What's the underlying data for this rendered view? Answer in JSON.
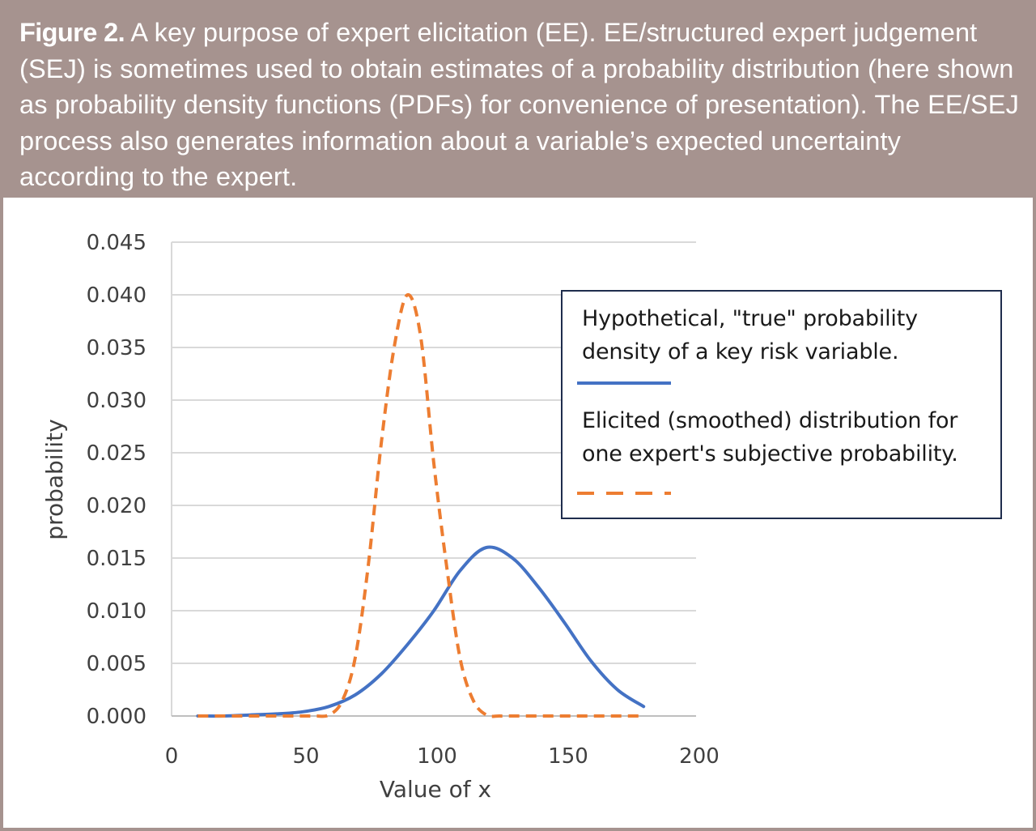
{
  "caption": {
    "label": "Figure 2.",
    "text": " A key purpose of expert elicitation (EE). EE/structured expert judgement (SEJ) is sometimes used to obtain estimates of a probability distribution (here shown as probability density functions (PDFs) for convenience of presentation). The EE/SEJ process also generates information about a variable’s expected uncertainty according to the expert."
  },
  "colors": {
    "caption_background": "#a6938f",
    "true_series": "#4472c4",
    "elicited_series": "#ed7d31",
    "gridline": "#d9d9d9",
    "legend_border": "#1f2d4d"
  },
  "chart_data": {
    "type": "line",
    "xlabel": "Value of x",
    "ylabel": "probability",
    "xlim": [
      0,
      200
    ],
    "ylim": [
      0,
      0.045
    ],
    "x_ticks": [
      "0",
      "50",
      "100",
      "150",
      "200"
    ],
    "y_ticks": [
      "0.000",
      "0.005",
      "0.010",
      "0.015",
      "0.020",
      "0.025",
      "0.030",
      "0.035",
      "0.040",
      "0.045"
    ],
    "grid": "horizontal",
    "legend_position": "right",
    "series": [
      {
        "name": "Hypothetical, \"true\" probability density of a key risk variable.",
        "style": "solid",
        "x": [
          10,
          20,
          30,
          40,
          50,
          60,
          70,
          80,
          90,
          100,
          110,
          120,
          130,
          140,
          150,
          160,
          170,
          180
        ],
        "y": [
          0.0,
          0.0,
          0.0001,
          0.0002,
          0.0004,
          0.0009,
          0.002,
          0.004,
          0.0068,
          0.01,
          0.0138,
          0.016,
          0.015,
          0.0122,
          0.0088,
          0.0052,
          0.0025,
          0.0009
        ]
      },
      {
        "name": "Elicited (smoothed) distribution for one expert's subjective probability.",
        "style": "dashed",
        "x": [
          10,
          20,
          30,
          40,
          50,
          55,
          60,
          65,
          70,
          75,
          80,
          85,
          90,
          95,
          100,
          105,
          110,
          115,
          120,
          125,
          130,
          140,
          150,
          160,
          170,
          180
        ],
        "y": [
          0,
          0,
          0,
          0,
          0,
          0,
          0.0001,
          0.0014,
          0.0055,
          0.0143,
          0.026,
          0.0352,
          0.04,
          0.036,
          0.024,
          0.014,
          0.0055,
          0.0015,
          0.0001,
          0,
          0,
          0,
          0,
          0,
          0,
          0
        ]
      }
    ]
  }
}
